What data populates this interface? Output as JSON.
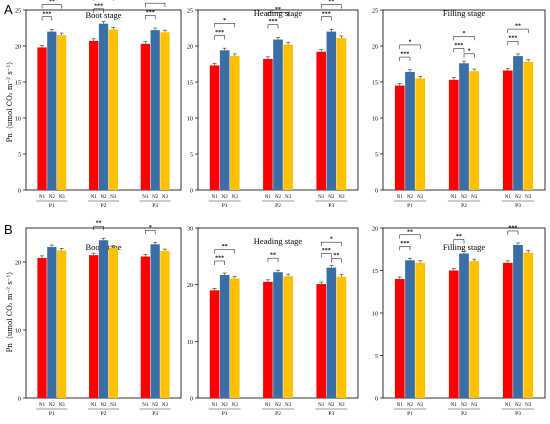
{
  "panels": [
    {
      "letter": "A",
      "ylabel": "Pn（umol CO₂ m⁻² s⁻¹）"
    },
    {
      "letter": "B",
      "ylabel": "Pn（umol CO₂ m⁻² s⁻¹）"
    }
  ],
  "colors": {
    "N1": "#ff0000",
    "N2": "#3a6ea5",
    "N3": "#ffc000"
  },
  "chart_data": [
    {
      "type": "bar",
      "title": "Boot stage",
      "categories": [
        "P1",
        "P2",
        "P3"
      ],
      "ylim": [
        0,
        25
      ],
      "yticks": [
        0,
        5,
        10,
        15,
        20,
        25
      ],
      "grid": false,
      "series": [
        {
          "name": "N1",
          "values": [
            19.8,
            20.7,
            20.3
          ]
        },
        {
          "name": "N2",
          "values": [
            22.0,
            23.1,
            22.2
          ]
        },
        {
          "name": "N3",
          "values": [
            21.5,
            22.3,
            21.9
          ]
        }
      ],
      "annotations": [
        {
          "group": "P1",
          "pair": [
            "N1",
            "N3"
          ],
          "label": "**"
        },
        {
          "group": "P1",
          "pair": [
            "N1",
            "N2"
          ],
          "label": "***"
        },
        {
          "group": "P2",
          "pair": [
            "N1",
            "N3"
          ],
          "label": "**"
        },
        {
          "group": "P2",
          "pair": [
            "N1",
            "N2"
          ],
          "label": "***"
        },
        {
          "group": "P3",
          "pair": [
            "N1",
            "N3"
          ],
          "label": "**"
        },
        {
          "group": "P3",
          "pair": [
            "N1",
            "N2"
          ],
          "label": "***"
        }
      ]
    },
    {
      "type": "bar",
      "title": "Heading stage",
      "categories": [
        "P1",
        "P2",
        "P3"
      ],
      "ylim": [
        0,
        25
      ],
      "yticks": [
        0,
        5,
        10,
        15,
        20,
        25
      ],
      "grid": false,
      "series": [
        {
          "name": "N1",
          "values": [
            17.3,
            18.2,
            19.2
          ]
        },
        {
          "name": "N2",
          "values": [
            19.4,
            20.9,
            22.0
          ]
        },
        {
          "name": "N3",
          "values": [
            18.6,
            20.2,
            21.1
          ]
        }
      ],
      "annotations": [
        {
          "group": "P1",
          "pair": [
            "N1",
            "N3"
          ],
          "label": "*"
        },
        {
          "group": "P1",
          "pair": [
            "N1",
            "N2"
          ],
          "label": "***"
        },
        {
          "group": "P2",
          "pair": [
            "N1",
            "N3"
          ],
          "label": "**"
        },
        {
          "group": "P2",
          "pair": [
            "N1",
            "N2"
          ],
          "label": "***"
        },
        {
          "group": "P3",
          "pair": [
            "N1",
            "N3"
          ],
          "label": "**"
        },
        {
          "group": "P3",
          "pair": [
            "N1",
            "N2"
          ],
          "label": "***"
        }
      ]
    },
    {
      "type": "bar",
      "title": "Filling stage",
      "categories": [
        "P1",
        "P2",
        "P3"
      ],
      "ylim": [
        0,
        25
      ],
      "yticks": [
        0,
        5,
        10,
        15,
        20,
        25
      ],
      "grid": false,
      "series": [
        {
          "name": "N1",
          "values": [
            14.5,
            15.3,
            16.6
          ]
        },
        {
          "name": "N2",
          "values": [
            16.4,
            17.6,
            18.6
          ]
        },
        {
          "name": "N3",
          "values": [
            15.5,
            16.5,
            17.8
          ]
        }
      ],
      "annotations": [
        {
          "group": "P1",
          "pair": [
            "N1",
            "N3"
          ],
          "label": "*"
        },
        {
          "group": "P1",
          "pair": [
            "N1",
            "N2"
          ],
          "label": "***"
        },
        {
          "group": "P2",
          "pair": [
            "N1",
            "N3"
          ],
          "label": "*"
        },
        {
          "group": "P2",
          "pair": [
            "N1",
            "N2"
          ],
          "label": "***"
        },
        {
          "group": "P2",
          "pair": [
            "N2",
            "N3"
          ],
          "label": "*"
        },
        {
          "group": "P3",
          "pair": [
            "N1",
            "N3"
          ],
          "label": "**"
        },
        {
          "group": "P3",
          "pair": [
            "N1",
            "N2"
          ],
          "label": "***"
        }
      ]
    },
    {
      "type": "bar",
      "title": "Boot stage",
      "categories": [
        "P1",
        "P2",
        "P3"
      ],
      "ylim": [
        0,
        25
      ],
      "yticks": [
        0,
        10,
        20
      ],
      "grid": false,
      "series": [
        {
          "name": "N1",
          "values": [
            20.6,
            21.0,
            20.8
          ]
        },
        {
          "name": "N2",
          "values": [
            22.2,
            23.2,
            22.6
          ]
        },
        {
          "name": "N3",
          "values": [
            21.7,
            22.1,
            21.6
          ]
        }
      ],
      "annotations": [
        {
          "group": "P2",
          "pair": [
            "N1",
            "N2"
          ],
          "label": "**"
        },
        {
          "group": "P3",
          "pair": [
            "N1",
            "N2"
          ],
          "label": "*"
        }
      ]
    },
    {
      "type": "bar",
      "title": "Heading stage",
      "categories": [
        "P1",
        "P2",
        "P3"
      ],
      "ylim": [
        0,
        30
      ],
      "yticks": [
        0,
        10,
        20,
        30
      ],
      "grid": false,
      "series": [
        {
          "name": "N1",
          "values": [
            19.0,
            20.5,
            20.1
          ]
        },
        {
          "name": "N2",
          "values": [
            21.7,
            22.2,
            23.0
          ]
        },
        {
          "name": "N3",
          "values": [
            21.1,
            21.5,
            21.4
          ]
        }
      ],
      "annotations": [
        {
          "group": "P1",
          "pair": [
            "N1",
            "N3"
          ],
          "label": "**"
        },
        {
          "group": "P1",
          "pair": [
            "N1",
            "N2"
          ],
          "label": "***"
        },
        {
          "group": "P2",
          "pair": [
            "N1",
            "N2"
          ],
          "label": "**"
        },
        {
          "group": "P3",
          "pair": [
            "N1",
            "N3"
          ],
          "label": "*"
        },
        {
          "group": "P3",
          "pair": [
            "N1",
            "N2"
          ],
          "label": "***"
        },
        {
          "group": "P3",
          "pair": [
            "N2",
            "N3"
          ],
          "label": "**"
        }
      ]
    },
    {
      "type": "bar",
      "title": "Filling stage",
      "categories": [
        "P1",
        "P2",
        "P3"
      ],
      "ylim": [
        0,
        20
      ],
      "yticks": [
        0,
        5,
        10,
        15,
        20
      ],
      "grid": false,
      "series": [
        {
          "name": "N1",
          "values": [
            14.0,
            15.0,
            15.9
          ]
        },
        {
          "name": "N2",
          "values": [
            16.2,
            17.0,
            18.0
          ]
        },
        {
          "name": "N3",
          "values": [
            15.9,
            16.1,
            17.1
          ]
        }
      ],
      "annotations": [
        {
          "group": "P1",
          "pair": [
            "N1",
            "N3"
          ],
          "label": "**"
        },
        {
          "group": "P1",
          "pair": [
            "N1",
            "N2"
          ],
          "label": "***"
        },
        {
          "group": "P2",
          "pair": [
            "N1",
            "N2"
          ],
          "label": "**"
        },
        {
          "group": "P3",
          "pair": [
            "N1",
            "N2"
          ],
          "label": "***"
        }
      ]
    }
  ]
}
